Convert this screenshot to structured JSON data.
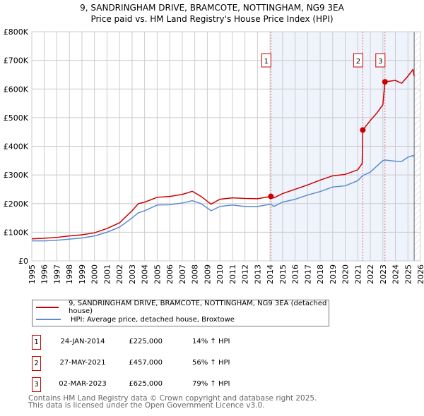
{
  "chart_data": {
    "type": "line",
    "title": "9, SANDRINGHAM DRIVE, BRAMCOTE, NOTTINGHAM, NG9 3EA",
    "subtitle": "Price paid vs. HM Land Registry's House Price Index (HPI)",
    "xlim": [
      1995,
      2026
    ],
    "ylim": [
      0,
      800000
    ],
    "x_ticks": [
      "1995",
      "1996",
      "1997",
      "1998",
      "1999",
      "2000",
      "2001",
      "2002",
      "2003",
      "2004",
      "2005",
      "2006",
      "2007",
      "2008",
      "2009",
      "2010",
      "2011",
      "2012",
      "2013",
      "2014",
      "2015",
      "2016",
      "2017",
      "2018",
      "2019",
      "2020",
      "2021",
      "2022",
      "2023",
      "2024",
      "2025",
      "2026"
    ],
    "y_ticks": [
      {
        "v": 0,
        "l": "£0"
      },
      {
        "v": 100000,
        "l": "£100K"
      },
      {
        "v": 200000,
        "l": "£200K"
      },
      {
        "v": 300000,
        "l": "£300K"
      },
      {
        "v": 400000,
        "l": "£400K"
      },
      {
        "v": 500000,
        "l": "£500K"
      },
      {
        "v": 600000,
        "l": "£600K"
      },
      {
        "v": 700000,
        "l": "£700K"
      },
      {
        "v": 800000,
        "l": "£800K"
      }
    ],
    "series": [
      {
        "name": "9, SANDRINGHAM DRIVE, BRAMCOTE, NOTTINGHAM, NG9 3EA (detached house)",
        "color": "#cc0000",
        "x": [
          1995,
          1996,
          1997,
          1998,
          1999,
          2000,
          2001,
          2002,
          2003,
          2003.5,
          2004,
          2005,
          2006,
          2007,
          2007.8,
          2008.5,
          2009.3,
          2010,
          2011,
          2012,
          2013,
          2014.07,
          2014.3,
          2015,
          2016,
          2017,
          2018,
          2019,
          2020,
          2021,
          2021.35,
          2021.4,
          2022,
          2022.5,
          2023,
          2023.17,
          2024,
          2024.5,
          2025,
          2025.4,
          2025.5
        ],
        "y": [
          77000,
          79000,
          82000,
          87000,
          91000,
          98000,
          113000,
          133000,
          175000,
          200000,
          205000,
          222000,
          225000,
          232000,
          243000,
          225000,
          198000,
          215000,
          220000,
          218000,
          217000,
          225000,
          220000,
          235000,
          250000,
          265000,
          282000,
          297000,
          302000,
          318000,
          340000,
          457000,
          490000,
          515000,
          545000,
          625000,
          630000,
          620000,
          645000,
          668000,
          645000
        ]
      },
      {
        "name": "HPI: Average price, detached house, Broxtowe",
        "color": "#5b8ccf",
        "x": [
          1995,
          1996,
          1997,
          1998,
          1999,
          2000,
          2001,
          2002,
          2003,
          2003.5,
          2004,
          2005,
          2006,
          2007,
          2007.8,
          2008.5,
          2009.3,
          2010,
          2011,
          2012,
          2013,
          2014.07,
          2014.3,
          2015,
          2016,
          2017,
          2018,
          2019,
          2020,
          2021,
          2021.4,
          2022,
          2022.5,
          2023,
          2023.17,
          2024,
          2024.5,
          2025,
          2025.4,
          2025.5
        ],
        "y": [
          70000,
          70000,
          72000,
          76000,
          80000,
          87000,
          100000,
          118000,
          150000,
          168000,
          175000,
          195000,
          196000,
          202000,
          210000,
          200000,
          175000,
          190000,
          195000,
          190000,
          190000,
          198000,
          190000,
          205000,
          215000,
          230000,
          242000,
          258000,
          262000,
          280000,
          298000,
          310000,
          330000,
          350000,
          352000,
          348000,
          347000,
          362000,
          368000,
          362000
        ]
      }
    ],
    "sales": [
      {
        "n": "1",
        "x": 2014.07,
        "y": 225000,
        "date": "24-JAN-2014",
        "price": "£225,000",
        "hpi": "14% ↑ HPI"
      },
      {
        "n": "2",
        "x": 2021.4,
        "y": 457000,
        "date": "27-MAY-2021",
        "price": "£457,000",
        "hpi": "56% ↑ HPI"
      },
      {
        "n": "3",
        "x": 2023.17,
        "y": 625000,
        "date": "02-MAR-2023",
        "price": "£625,000",
        "hpi": "79% ↑ HPI"
      }
    ],
    "shade_from": 2014.07,
    "hatch_from": 2025.5
  },
  "footer": {
    "line1": "Contains HM Land Registry data © Crown copyright and database right 2025.",
    "line2": "This data is licensed under the Open Government Licence v3.0."
  }
}
